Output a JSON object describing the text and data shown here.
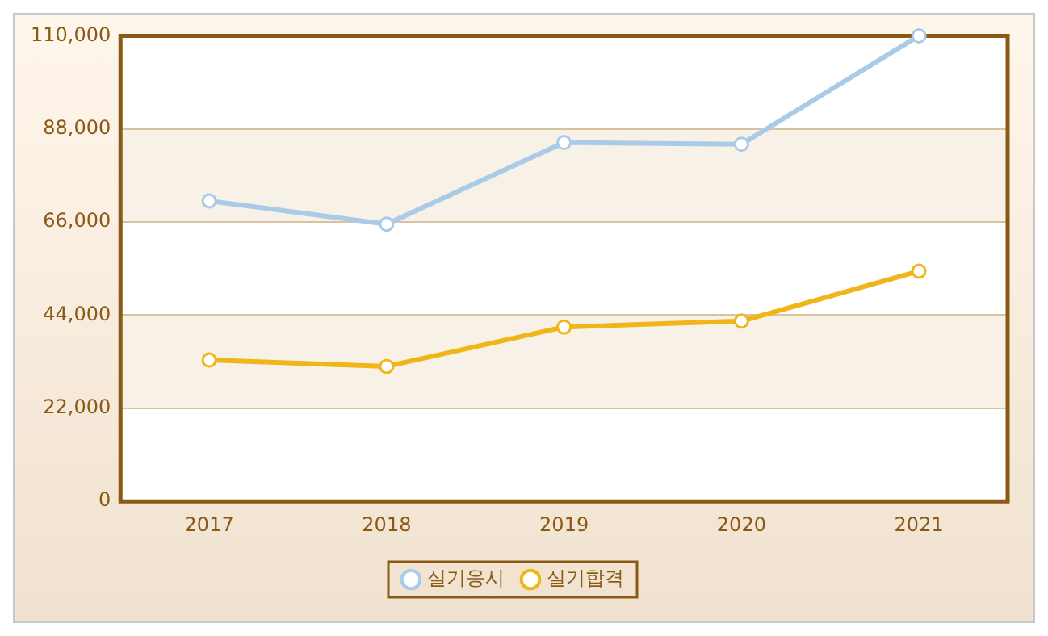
{
  "chart_data": {
    "type": "line",
    "categories": [
      "2017",
      "2018",
      "2019",
      "2020",
      "2021"
    ],
    "series": [
      {
        "name": "실기응시",
        "color": "#a9cbe8",
        "values": [
          71000,
          65500,
          84800,
          84400,
          110000
        ]
      },
      {
        "name": "실기합격",
        "color": "#f0b619",
        "values": [
          33400,
          31900,
          41200,
          42600,
          54400
        ]
      }
    ],
    "ylim": [
      0,
      110000
    ],
    "yticks": [
      {
        "value": 0,
        "label": "0"
      },
      {
        "value": 22000,
        "label": "22,000"
      },
      {
        "value": 44000,
        "label": "44,000"
      },
      {
        "value": 66000,
        "label": "66,000"
      },
      {
        "value": 88000,
        "label": "88,000"
      },
      {
        "value": 110000,
        "label": "110,000"
      }
    ],
    "grid": "y",
    "legend": "bottom",
    "marker": "circle",
    "line_style": "solid"
  }
}
